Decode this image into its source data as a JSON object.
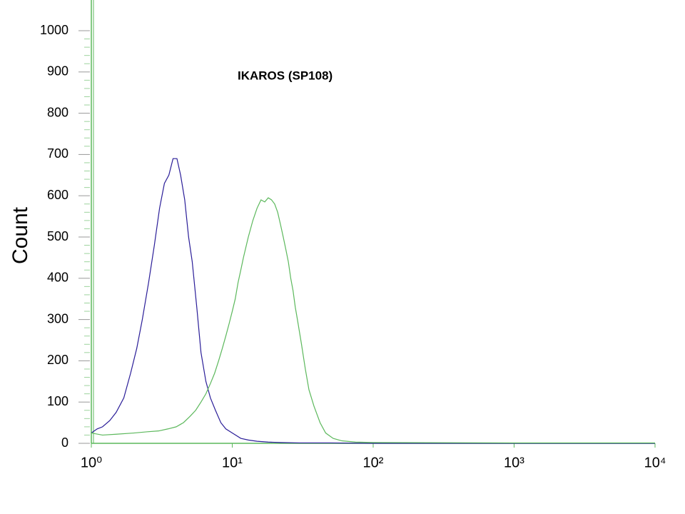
{
  "chart_data": {
    "type": "line",
    "title": "IKAROS (SP108)",
    "y_label": "Count",
    "log_x": true,
    "xlim": [
      1,
      10000
    ],
    "xticks": [
      {
        "value": 1,
        "label": "10⁰"
      },
      {
        "value": 10,
        "label": "10¹"
      },
      {
        "value": 100,
        "label": "10²"
      },
      {
        "value": 1000,
        "label": "10³"
      },
      {
        "value": 10000,
        "label": "10⁴"
      }
    ],
    "ylim": [
      0,
      1000
    ],
    "yticks": [
      0,
      100,
      200,
      300,
      400,
      500,
      600,
      700,
      800,
      900,
      1000
    ],
    "series": [
      {
        "color": "#2a1d98",
        "x": [
          1,
          1.1,
          1.2,
          1.35,
          1.5,
          1.7,
          1.9,
          2.1,
          2.3,
          2.55,
          2.8,
          3.05,
          3.3,
          3.55,
          3.8,
          4.05,
          4.3,
          4.6,
          4.9,
          5.2,
          5.6,
          6.0,
          6.5,
          7.0,
          7.6,
          8.3,
          9,
          10,
          11.5,
          13,
          15,
          18,
          22,
          30,
          50,
          100,
          1000,
          10000
        ],
        "values": [
          25,
          35,
          40,
          55,
          75,
          110,
          170,
          230,
          300,
          390,
          480,
          570,
          630,
          650,
          690,
          690,
          650,
          590,
          500,
          440,
          330,
          220,
          150,
          110,
          80,
          50,
          35,
          25,
          12,
          8,
          5,
          3,
          2,
          1,
          1,
          0,
          0,
          0
        ]
      },
      {
        "color": "#5cb85c",
        "x": [
          1,
          1.2,
          1.5,
          2,
          2.5,
          3,
          3.5,
          4,
          4.5,
          5,
          5.5,
          6,
          6.5,
          7,
          7.5,
          8,
          8.5,
          9,
          9.5,
          10,
          10.5,
          11,
          11.5,
          12,
          13,
          14,
          15,
          16,
          17,
          18,
          19,
          20,
          21,
          22,
          23,
          24,
          25,
          26,
          27,
          28,
          29,
          31,
          33,
          35,
          38,
          42,
          46,
          52,
          60,
          75,
          100,
          1000,
          10000
        ],
        "values": [
          25,
          20,
          22,
          25,
          28,
          30,
          35,
          40,
          50,
          65,
          80,
          100,
          120,
          145,
          170,
          200,
          230,
          260,
          290,
          320,
          350,
          390,
          420,
          450,
          500,
          540,
          570,
          590,
          585,
          595,
          590,
          580,
          560,
          530,
          500,
          470,
          440,
          400,
          370,
          330,
          300,
          240,
          180,
          130,
          90,
          50,
          25,
          12,
          6,
          3,
          2,
          1,
          1
        ]
      }
    ]
  }
}
